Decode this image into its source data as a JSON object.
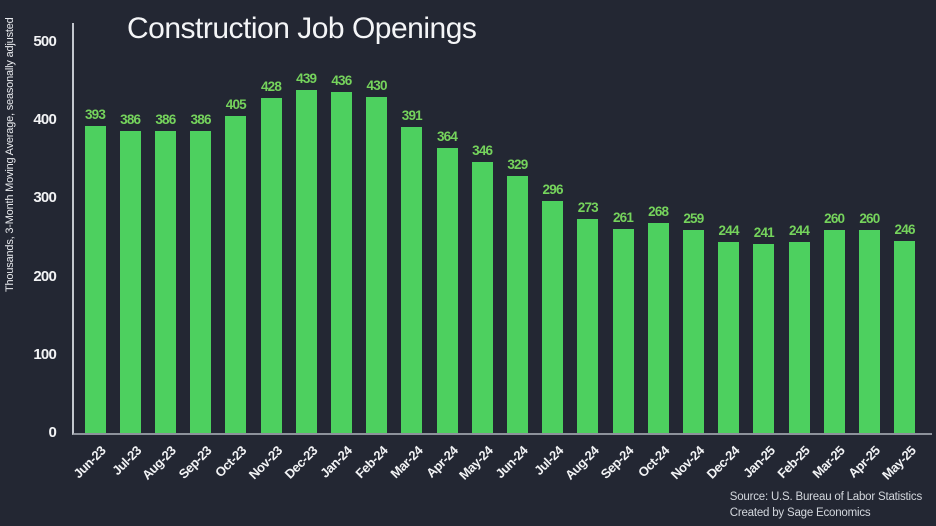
{
  "chart_data": {
    "type": "bar",
    "title": "Construction Job Openings",
    "ylabel": "Thousands, 3-Month Moving Average, seasonally adjusted",
    "xlabel": "",
    "categories": [
      "Jun-23",
      "Jul-23",
      "Aug-23",
      "Sep-23",
      "Oct-23",
      "Nov-23",
      "Dec-23",
      "Jan-24",
      "Feb-24",
      "Mar-24",
      "Apr-24",
      "May-24",
      "Jun-24",
      "Jul-24",
      "Aug-24",
      "Sep-24",
      "Oct-24",
      "Nov-24",
      "Dec-24",
      "Jan-25",
      "Feb-25",
      "Mar-25",
      "Apr-25",
      "May-25"
    ],
    "values": [
      393,
      386,
      386,
      386,
      405,
      428,
      439,
      436,
      430,
      391,
      364,
      346,
      329,
      296,
      273,
      261,
      268,
      259,
      244,
      241,
      244,
      260,
      260,
      246
    ],
    "yticks": [
      0,
      100,
      200,
      300,
      400,
      500
    ],
    "ylim": [
      0,
      524
    ],
    "grid": false,
    "legend_position": "none",
    "bar_color": "#4dd05f",
    "value_label_color": "#75d35c",
    "background_color": "#232733",
    "data_labels": true
  },
  "source": {
    "line1": "Source: U.S. Bureau of Labor Statistics",
    "line2": "Created by Sage Economics"
  }
}
